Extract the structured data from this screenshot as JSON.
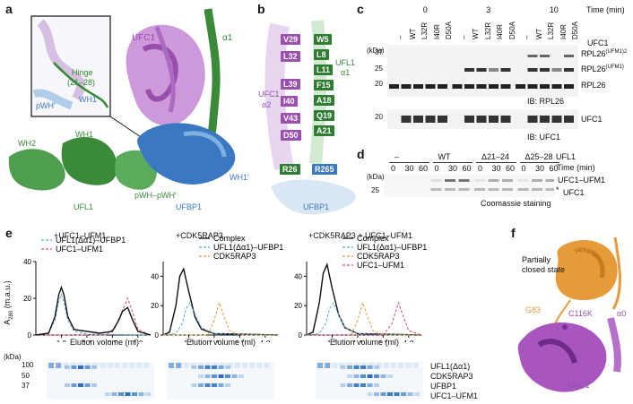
{
  "panels": {
    "a": {
      "label": "a",
      "structure_labels": {
        "ufc1": "UFC1",
        "alpha1": "α1",
        "hinge_title": "Hinge",
        "hinge_range": "(21–28)",
        "wh1_prime_inset": "WH1′",
        "pwh_prime_inset": "pWH′",
        "wh2": "WH2",
        "wh1": "WH1",
        "ufl1": "UFL1",
        "pwh_pair": "pWH–pWH′",
        "ufbp1": "UFBP1",
        "wh1_prime": "WH1′"
      }
    },
    "b": {
      "label": "b",
      "ufc1_residues": [
        "V29",
        "L32",
        "L39",
        "I40",
        "V43",
        "D50"
      ],
      "ufl1_residues": [
        "W5",
        "L8",
        "L11",
        "F15",
        "A18",
        "Q19",
        "A21"
      ],
      "r26": "R26",
      "r265": "R265",
      "ufl1_alpha1_line1": "UFL1",
      "ufl1_alpha1_line2": "α1",
      "ufc1_alpha2_line1": "UFC1",
      "ufc1_alpha2_line2": "α2",
      "ufbp1": "UFBP1"
    },
    "c": {
      "label": "c",
      "time_header": "Time (min)",
      "time_groups": [
        "0",
        "3",
        "10"
      ],
      "lane_labels": [
        "–",
        "WT",
        "L32R",
        "I40R",
        "D50A",
        "–",
        "WT",
        "L32R",
        "I40R",
        "D50A",
        "–",
        "WT",
        "L32R",
        "I40R",
        "D50A"
      ],
      "ufc1_row_label": "UFC1",
      "kda_label": "(kDa)",
      "markers_top": [
        "37",
        "25",
        "20"
      ],
      "markers_bottom": [
        "20"
      ],
      "band_labels": [
        "RPL26(UFM1)2",
        "RPL26(UFM1)",
        "RPL26"
      ],
      "ib_top": "IB: RPL26",
      "ib_bottom": "IB: UFC1",
      "ufc1_band": "UFC1"
    },
    "d": {
      "label": "d",
      "ufl1_header": "UFL1",
      "groups": [
        "–",
        "WT",
        "Δ21–24",
        "Δ25–28"
      ],
      "times": [
        "0",
        "30",
        "60",
        "0",
        "30",
        "60",
        "0",
        "30",
        "60",
        "0",
        "30",
        "60"
      ],
      "time_label": "Time (min)",
      "kda_label": "(kDa)",
      "marker": "25",
      "band_labels": [
        "UFC1–UFM1",
        "UFC1"
      ],
      "asterisk": "*",
      "caption": "Coomassie staining"
    },
    "e": {
      "label": "e",
      "ylabel_main": "A",
      "ylabel_sub": "280",
      "ylabel_unit": "(m.a.u.)",
      "xlabel": "Elution volume (ml)",
      "kda_label": "(kDa)",
      "gel_markers": [
        "100",
        "50",
        "37"
      ],
      "gel_bands": [
        "UFL1(Δα1)",
        "CDK5RAP3",
        "UFBP1",
        "UFC1–UFM1"
      ],
      "sub_titles": [
        "+UFC1–UFM1",
        "+CDK5RAP3",
        "+CDK5RAP3 + UFC1–UFM1"
      ],
      "legends": [
        [
          "UFL1(Δα1)–UFBP1",
          "UFC1–UFM1"
        ],
        [
          "Complex",
          "UFL1(Δα1)–UFBP1",
          "CDK5RAP3"
        ],
        [
          "Complex",
          "UFL1(Δα1)–UFBP1",
          "CDK5RAP3",
          "UFC1–UFM1"
        ]
      ]
    },
    "f": {
      "label": "f",
      "state_line1": "Partially",
      "state_line2": "closed state",
      "ufm1": "UFM1",
      "g83": "G83",
      "c116k": "C116K",
      "alpha0": "α0",
      "ufc1": "UFC1"
    }
  },
  "colors": {
    "green": "#3a8a3a",
    "purple": "#9b4fb0",
    "blue": "#3a78c2",
    "orange": "#e79a3a",
    "magenta": "#e04a6e"
  },
  "chart_data": [
    {
      "type": "line",
      "title": "+UFC1–UFM1",
      "xlabel": "Elution volume (ml)",
      "ylabel": "A280 (m.a.u.)",
      "xlim": [
        1.0,
        1.9
      ],
      "ylim": [
        0,
        40
      ],
      "xticks": [
        "1.2",
        "1.4",
        "1.6",
        "1.8"
      ],
      "yticks": [
        "0",
        "20",
        "40"
      ],
      "legend": "top-left",
      "series": [
        {
          "name": "UFL1(Δα1)–UFBP1",
          "style": "dashed",
          "color": "#5aa9d6",
          "x": [
            1.0,
            1.1,
            1.15,
            1.18,
            1.2,
            1.22,
            1.25,
            1.3,
            1.4,
            1.9
          ],
          "y": [
            0,
            1,
            8,
            18,
            22,
            18,
            8,
            2,
            0.5,
            0
          ]
        },
        {
          "name": "UFC1–UFM1",
          "style": "dashed",
          "color": "#e04a6e",
          "x": [
            1.0,
            1.55,
            1.62,
            1.67,
            1.72,
            1.76,
            1.8,
            1.9
          ],
          "y": [
            0,
            0,
            4,
            12,
            20,
            12,
            3,
            0
          ]
        },
        {
          "name": "",
          "style": "solid",
          "color": "#111111",
          "x": [
            1.0,
            1.1,
            1.15,
            1.18,
            1.2,
            1.22,
            1.25,
            1.3,
            1.5,
            1.6,
            1.65,
            1.68,
            1.72,
            1.76,
            1.8,
            1.9
          ],
          "y": [
            0,
            1,
            10,
            22,
            26,
            22,
            10,
            3,
            1,
            2,
            8,
            13,
            15,
            8,
            2,
            0
          ]
        }
      ]
    },
    {
      "type": "line",
      "title": "+CDK5RAP3",
      "xlabel": "Elution volume (ml)",
      "xlim": [
        1.0,
        1.9
      ],
      "ylim": [
        0,
        50
      ],
      "xticks": [
        "1.2",
        "1.4",
        "1.6",
        "1.8"
      ],
      "yticks": [
        "0",
        "20",
        "40"
      ],
      "legend": "top-right",
      "series": [
        {
          "name": "Complex",
          "style": "solid",
          "color": "#111111",
          "x": [
            1.0,
            1.05,
            1.1,
            1.13,
            1.16,
            1.2,
            1.25,
            1.3,
            1.4,
            1.9
          ],
          "y": [
            0,
            2,
            20,
            40,
            45,
            30,
            12,
            4,
            1,
            0
          ]
        },
        {
          "name": "UFL1(Δα1)–UFBP1",
          "style": "dashed",
          "color": "#5aa9d6",
          "x": [
            1.0,
            1.1,
            1.15,
            1.18,
            1.21,
            1.25,
            1.3,
            1.4,
            1.9
          ],
          "y": [
            0,
            1,
            8,
            18,
            22,
            14,
            5,
            1,
            0
          ]
        },
        {
          "name": "CDK5RAP3",
          "style": "dashed",
          "color": "#e79a3a",
          "x": [
            1.0,
            1.35,
            1.4,
            1.44,
            1.48,
            1.52,
            1.6,
            1.9
          ],
          "y": [
            0,
            0,
            10,
            22,
            12,
            3,
            0,
            0
          ]
        }
      ]
    },
    {
      "type": "line",
      "title": "+CDK5RAP3 + UFC1–UFM1",
      "xlabel": "Elution volume (ml)",
      "xlim": [
        1.0,
        1.9
      ],
      "ylim": [
        0,
        50
      ],
      "xticks": [
        "1.2",
        "1.4",
        "1.6",
        "1.8"
      ],
      "yticks": [
        "0",
        "20",
        "40"
      ],
      "legend": "top-right",
      "series": [
        {
          "name": "Complex",
          "style": "solid",
          "color": "#111111",
          "x": [
            1.0,
            1.05,
            1.1,
            1.13,
            1.16,
            1.2,
            1.25,
            1.3,
            1.4,
            1.9
          ],
          "y": [
            0,
            2,
            22,
            42,
            48,
            32,
            14,
            5,
            1,
            0
          ]
        },
        {
          "name": "UFL1(Δα1)–UFBP1",
          "style": "dashed",
          "color": "#5aa9d6",
          "x": [
            1.0,
            1.1,
            1.15,
            1.18,
            1.21,
            1.25,
            1.3,
            1.4,
            1.9
          ],
          "y": [
            0,
            1,
            8,
            18,
            22,
            14,
            5,
            1,
            0
          ]
        },
        {
          "name": "CDK5RAP3",
          "style": "dashed",
          "color": "#e79a3a",
          "x": [
            1.0,
            1.35,
            1.4,
            1.44,
            1.48,
            1.52,
            1.6,
            1.9
          ],
          "y": [
            0,
            0,
            10,
            22,
            12,
            3,
            0,
            0
          ]
        },
        {
          "name": "UFC1–UFM1",
          "style": "dashed",
          "color": "#e04a6e",
          "x": [
            1.0,
            1.6,
            1.67,
            1.72,
            1.76,
            1.8,
            1.9
          ],
          "y": [
            0,
            0,
            8,
            22,
            12,
            3,
            0
          ]
        }
      ]
    }
  ]
}
